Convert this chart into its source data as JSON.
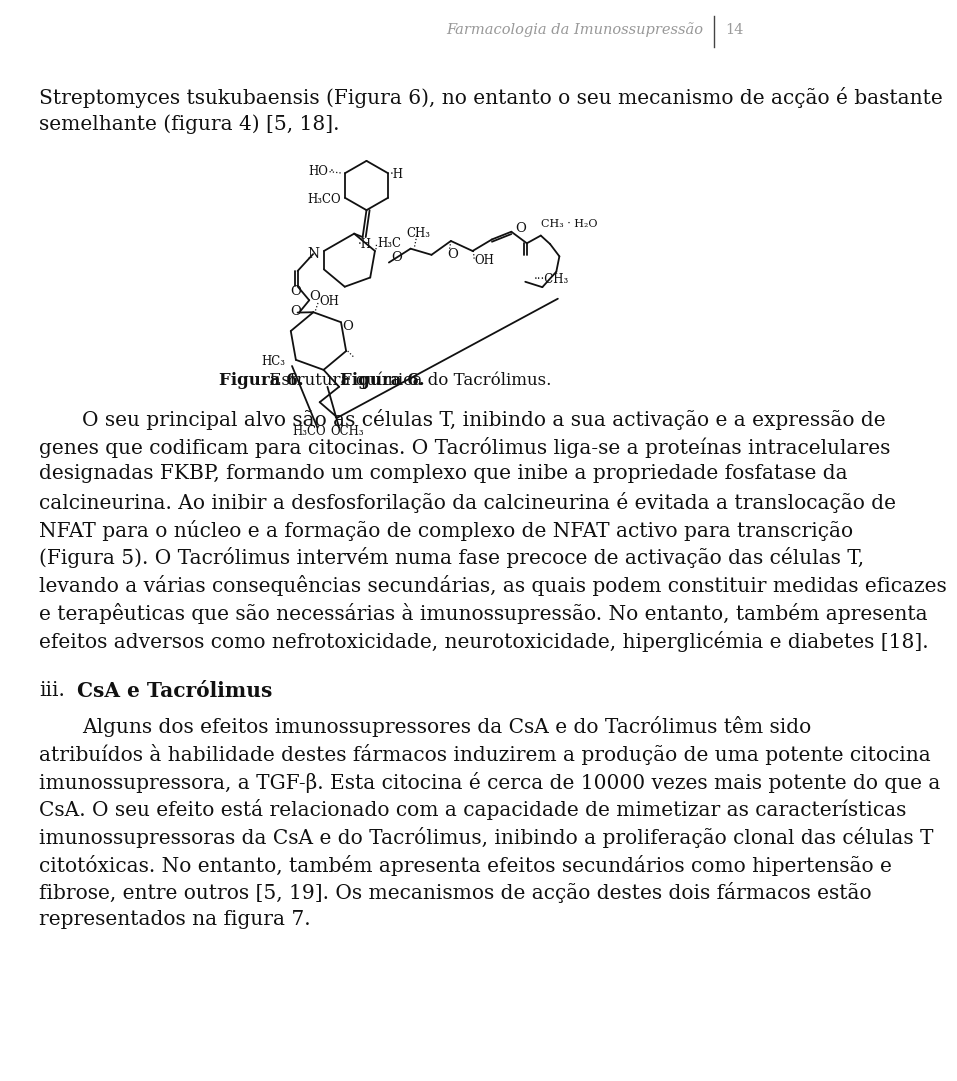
{
  "header_text": "Farmacologia da Imunossupressão",
  "page_number": "14",
  "header_color": "#999999",
  "header_fontsize": 10.5,
  "body_color": "#111111",
  "body_fontsize": 14.5,
  "caption_fontsize": 12,
  "background_color": "#ffffff",
  "line_color": "#444444",
  "p1_lines": [
    "Streptomyces tsukubaensis (Figura 6), no entanto o seu mecanismo de acção é bastante",
    "semelhante (figura 4) [5, 18]."
  ],
  "fig_caption_bold": "Figura 6.",
  "fig_caption_rest": " Estrutura química do Tacrólimus.",
  "p2_lines": [
    "O seu principal alvo são as células T, inibindo a sua activação e a expressão de",
    "genes que codificam para citocinas. O Tacrólimus liga-se a proteínas intracelulares",
    "designadas FKBP, formando um complexo que inibe a propriedade fosfatase da",
    "calcineurina. Ao inibir a desfosforilação da calcineurina é evitada a translocação de",
    "NFAT para o núcleo e a formação de complexo de NFAT activo para transcrição",
    "(Figura 5). O Tacrólimus intervém numa fase precoce de activação das células T,",
    "levando a várias consequências secundárias, as quais podem constituir medidas eficazes",
    "e terapêuticas que são necessárias à imunossupressão. No entanto, também apresenta",
    "efeitos adversos como nefrotoxicidade, neurotoxicidade, hiperglicémia e diabetes [18]."
  ],
  "section_num": "iii.",
  "section_title": "CsA e Tacrólimus",
  "p3_lines": [
    "Alguns dos efeitos imunossupressores da CsA e do Tacrólimus têm sido",
    "atribuídos à habilidade destes fármacos induzirem a produção de uma potente citocina",
    "imunossupressora, a TGF-β. Esta citocina é cerca de 10000 vezes mais potente do que a",
    "CsA. O seu efeito está relacionado com a capacidade de mimetizar as características",
    "imunossupressoras da CsA e do Tacrólimus, inibindo a proliferação clonal das células T",
    "citotóxicas. No entanto, também apresenta efeitos secundários como hipertensão e",
    "fibrose, entre outros [5, 19]. Os mecanismos de acção destes dois fármacos estão",
    "representados na figura 7."
  ]
}
